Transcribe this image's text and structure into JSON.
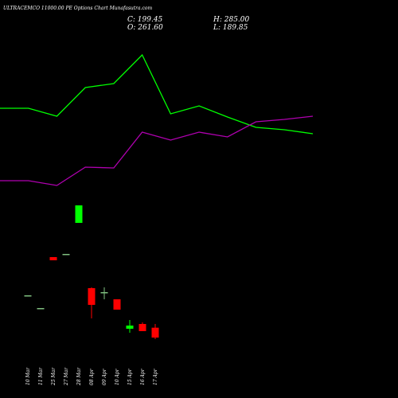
{
  "chart_data": [
    {
      "type": "candlestick",
      "title": "ULTRACEMCO 11000.00 PE Options Chart Munafasutra.com",
      "info": [
        "C: 199.45",
        "H: 285.00",
        "O: 261.60",
        "L: 189.85"
      ],
      "categories": [
        "10 Mar",
        "11 Mar",
        "25 Mar",
        "27 Mar",
        "28 Mar",
        "08 Apr",
        "09 Apr",
        "10 Apr",
        "15 Apr",
        "16 Apr",
        "17 Apr"
      ],
      "open": [
        465,
        385,
        705,
        725,
        920,
        510,
        485,
        440,
        255,
        285,
        261.6
      ],
      "high": [
        465,
        385,
        705,
        725,
        1030,
        515,
        515,
        440,
        310,
        295,
        285
      ],
      "low": [
        465,
        385,
        685,
        725,
        920,
        320,
        440,
        375,
        230,
        240,
        189.85
      ],
      "close": [
        465,
        385,
        685,
        725,
        1030,
        405,
        485,
        375,
        275,
        240,
        199.45
      ],
      "up_color": "#00ff00",
      "down_color": "#ff0000",
      "flat_color": "#7fbf7f",
      "ylim": [
        0,
        2320
      ]
    },
    {
      "type": "line",
      "categories": [
        null,
        null,
        null,
        null,
        null,
        null,
        null,
        null,
        null,
        null,
        null,
        null
      ],
      "series": [
        {
          "color": "#00ff00",
          "values": [
            364,
            364,
            354,
            390,
            395,
            431,
            357,
            367,
            353,
            340,
            337,
            332
          ]
        },
        {
          "color": "#b000b0",
          "values": [
            273,
            273,
            267,
            290,
            289,
            334,
            324,
            334,
            328,
            347,
            350,
            354
          ]
        }
      ],
      "ylim": [
        0,
        500
      ]
    }
  ]
}
